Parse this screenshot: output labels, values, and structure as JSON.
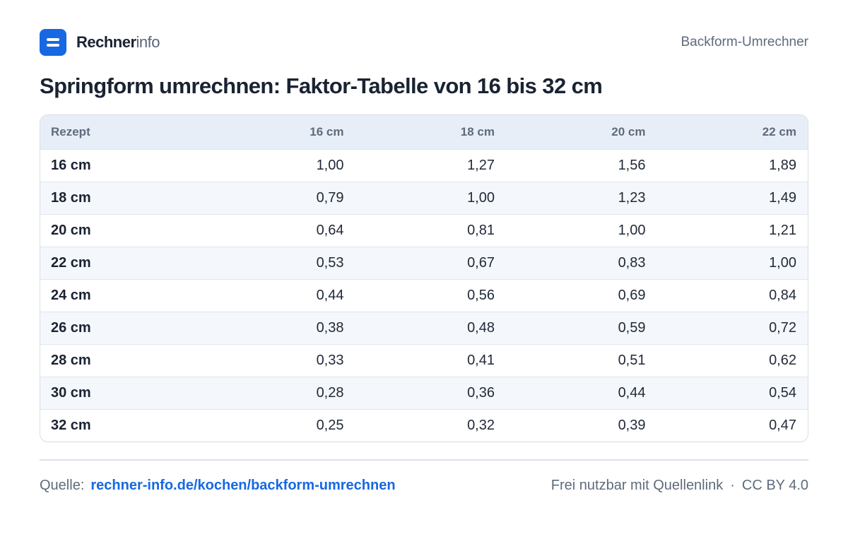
{
  "brand": {
    "name_strong": "Rechner",
    "name_light": "info"
  },
  "header": {
    "right_label": "Backform-Umrechner"
  },
  "title": "Springform umrechnen: Faktor-Tabelle  von 16 bis 32 cm",
  "table": {
    "columns": [
      "Rezept",
      "16 cm",
      "18 cm",
      "20 cm",
      "22 cm"
    ],
    "rows": [
      [
        "16 cm",
        "1,00",
        "1,27",
        "1,56",
        "1,89"
      ],
      [
        "18 cm",
        "0,79",
        "1,00",
        "1,23",
        "1,49"
      ],
      [
        "20 cm",
        "0,64",
        "0,81",
        "1,00",
        "1,21"
      ],
      [
        "22 cm",
        "0,53",
        "0,67",
        "0,83",
        "1,00"
      ],
      [
        "24 cm",
        "0,44",
        "0,56",
        "0,69",
        "0,84"
      ],
      [
        "26 cm",
        "0,38",
        "0,48",
        "0,59",
        "0,72"
      ],
      [
        "28 cm",
        "0,33",
        "0,41",
        "0,51",
        "0,62"
      ],
      [
        "30 cm",
        "0,28",
        "0,36",
        "0,44",
        "0,54"
      ],
      [
        "32 cm",
        "0,25",
        "0,32",
        "0,39",
        "0,47"
      ]
    ]
  },
  "footer": {
    "source_label": "Quelle:",
    "source_link": "rechner-info.de/kochen/backform-umrechnen",
    "usage": "Frei nutzbar mit Quellenlink",
    "separator": "·",
    "license": "CC BY 4.0"
  },
  "colors": {
    "accent": "#1768e3",
    "header_bg": "#e7eef7",
    "stripe": "#f4f7fb"
  }
}
